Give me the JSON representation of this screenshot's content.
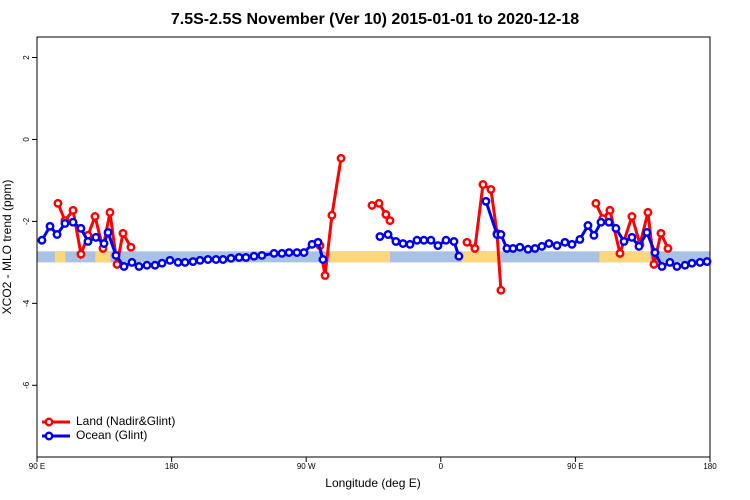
{
  "chart_data": {
    "type": "line",
    "title": "7.5S-2.5S November (Ver 10)   2015-01-01 to 2020-12-18",
    "xlabel": "Longitude (deg E)",
    "ylabel": "XCO2 - MLO trend (ppm)",
    "xlim": [
      90,
      540
    ],
    "ylim": [
      -7.75,
      2.5
    ],
    "xticks": [
      {
        "value": 90,
        "label": "90 E"
      },
      {
        "value": 180,
        "label": "180"
      },
      {
        "value": 270,
        "label": "90 W"
      },
      {
        "value": 360,
        "label": "0"
      },
      {
        "value": 450,
        "label": "90 E"
      },
      {
        "value": 540,
        "label": "180"
      }
    ],
    "yticks": [
      -6,
      -4,
      -2,
      0,
      2
    ],
    "legend": "bottom-left",
    "band": {
      "range": [
        -3.0,
        -2.73
      ],
      "ocean_color": "#a9c1e2",
      "land_color": "#fdd77c",
      "land_segments": [
        [
          102,
          109
        ],
        [
          129,
          139
        ],
        [
          286,
          326
        ],
        [
          374,
          400
        ],
        [
          466,
          500
        ]
      ]
    },
    "series": [
      {
        "name": "Land (Nadir&Glint)",
        "color": "#ff0000",
        "x": [
          104.0,
          108.7,
          114.1,
          119.4,
          124.1,
          128.8,
          134.1,
          138.8,
          143.5,
          147.5,
          152.8,
          null,
          279.2,
          282.6,
          287.2,
          293.3,
          null,
          314.0,
          318.7,
          323.3,
          326.0,
          null,
          377.5,
          382.8,
          388.2,
          393.5,
          397.6,
          400.2,
          null,
          463.7,
          468.4,
          473.1,
          479.8,
          487.8,
          493.2,
          498.5,
          502.5,
          507.2,
          511.9
        ],
        "values": [
          -1.56,
          -1.98,
          -1.73,
          -2.8,
          -2.34,
          -1.88,
          -2.66,
          -1.78,
          -3.05,
          -2.29,
          -2.63,
          null,
          -2.59,
          -3.32,
          -1.85,
          -0.46,
          null,
          -1.61,
          -1.56,
          -1.83,
          -1.98,
          null,
          -2.51,
          -2.66,
          -1.1,
          -1.22,
          -2.29,
          -3.68,
          null,
          -1.56,
          -1.93,
          -1.73,
          -2.78,
          -1.88,
          -2.56,
          -1.78,
          -3.05,
          -2.29,
          -2.66
        ]
      },
      {
        "name": "Ocean (Glint)",
        "color": "#0000ee",
        "x": [
          93.3,
          98.7,
          103.4,
          108.7,
          114.1,
          119.4,
          124.1,
          129.4,
          134.8,
          137.5,
          142.8,
          148.2,
          153.5,
          158.2,
          163.5,
          168.9,
          173.6,
          178.9,
          184.3,
          189.0,
          194.3,
          199.0,
          204.3,
          209.7,
          214.4,
          219.7,
          225.1,
          229.7,
          235.1,
          240.4,
          248.5,
          253.8,
          258.5,
          263.8,
          268.5,
          273.9,
          277.9,
          281.2,
          null,
          319.3,
          324.7,
          330.0,
          334.7,
          339.4,
          344.1,
          348.7,
          353.4,
          358.1,
          363.5,
          368.8,
          372.1,
          null,
          390.2,
          397.6,
          400.2,
          404.2,
          408.3,
          412.9,
          418.3,
          423.0,
          427.6,
          432.3,
          437.7,
          443.0,
          447.7,
          453.0,
          458.4,
          462.4,
          467.1,
          472.4,
          477.1,
          482.5,
          487.8,
          492.5,
          497.8,
          503.2,
          507.9,
          513.2,
          517.9,
          523.3,
          527.9,
          533.3,
          538.0
        ],
        "values": [
          -2.46,
          -2.12,
          -2.32,
          -2.05,
          -2.02,
          -2.17,
          -2.49,
          -2.39,
          -2.54,
          -2.27,
          -2.83,
          -3.1,
          -3.0,
          -3.1,
          -3.07,
          -3.07,
          -3.02,
          -2.95,
          -3.0,
          -3.0,
          -2.98,
          -2.95,
          -2.93,
          -2.93,
          -2.93,
          -2.9,
          -2.88,
          -2.88,
          -2.85,
          -2.83,
          -2.78,
          -2.78,
          -2.76,
          -2.76,
          -2.76,
          -2.56,
          -2.51,
          -2.93,
          null,
          -2.37,
          -2.32,
          -2.49,
          -2.54,
          -2.56,
          -2.46,
          -2.46,
          -2.46,
          -2.59,
          -2.46,
          -2.49,
          -2.85,
          null,
          -1.51,
          -2.32,
          -2.32,
          -2.66,
          -2.66,
          -2.63,
          -2.68,
          -2.66,
          -2.61,
          -2.54,
          -2.59,
          -2.51,
          -2.56,
          -2.44,
          -2.1,
          -2.34,
          -2.02,
          -2.02,
          -2.17,
          -2.49,
          -2.39,
          -2.61,
          -2.27,
          -2.76,
          -3.1,
          -3.0,
          -3.1,
          -3.07,
          -3.02,
          -3.0,
          -2.98
        ]
      }
    ]
  }
}
